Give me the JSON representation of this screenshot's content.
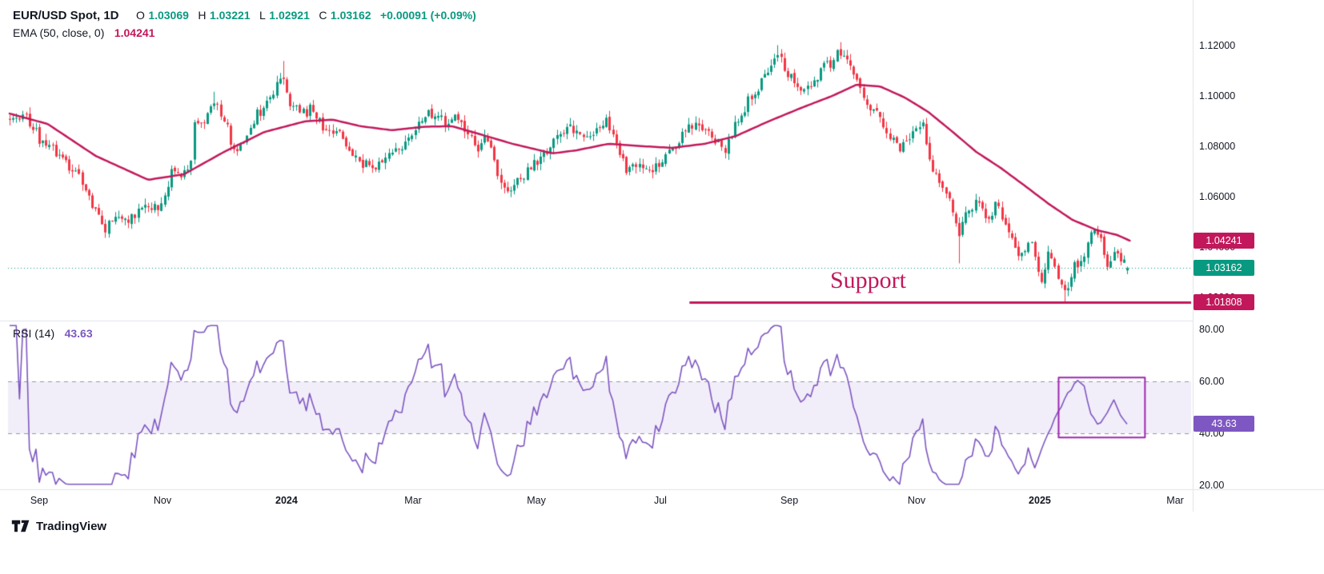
{
  "legend": {
    "title": "EUR/USD Spot, 1D",
    "o_key": "O",
    "o_val": "1.03069",
    "h_key": "H",
    "h_val": "1.03221",
    "l_key": "L",
    "l_val": "1.02921",
    "c_key": "C",
    "c_val": "1.03162",
    "change": "+0.00091 (+0.09%)",
    "ema_label": "EMA (50, close, 0)",
    "ema_value": "1.04241",
    "rsi_label": "RSI (14)",
    "rsi_value": "43.63"
  },
  "badges": {
    "ema": "1.04241",
    "price": "1.03162",
    "support": "1.01808",
    "rsi": "43.63"
  },
  "footer": {
    "brand": "TradingView"
  },
  "chart_data": {
    "type": "candlestick",
    "title": "EUR/USD Spot, 1D",
    "x_ticks": [
      {
        "label": "Sep",
        "f": 0.0264
      },
      {
        "label": "Nov",
        "f": 0.1306
      },
      {
        "label": "2024",
        "f": 0.2354,
        "bold": true
      },
      {
        "label": "Mar",
        "f": 0.3424
      },
      {
        "label": "May",
        "f": 0.4466
      },
      {
        "label": "Jul",
        "f": 0.5514
      },
      {
        "label": "Sep",
        "f": 0.6604
      },
      {
        "label": "Nov",
        "f": 0.7679
      },
      {
        "label": "2025",
        "f": 0.8721,
        "bold": true
      },
      {
        "label": "Mar",
        "f": 0.9865
      }
    ],
    "price_pane": {
      "ylim": [
        1.0114,
        1.1356
      ],
      "y_ticks": [
        {
          "label": "1.12000",
          "value": 1.12
        },
        {
          "label": "1.10000",
          "value": 1.1
        },
        {
          "label": "1.08000",
          "value": 1.08
        },
        {
          "label": "1.06000",
          "value": 1.06
        },
        {
          "label": "1.04000",
          "value": 1.04
        },
        {
          "label": "1.02000",
          "value": 1.02
        }
      ],
      "num_candles": 340,
      "seed": 11,
      "noise": 0.0018,
      "wick": 0.0026,
      "last_price": 1.03162,
      "last_candle": {
        "o": 1.03069,
        "h": 1.03221,
        "l": 1.02921,
        "c": 1.03162
      },
      "support": {
        "level": 1.01808,
        "start_f": 0.576,
        "label": "Support",
        "label_center_f": 0.727
      },
      "price_anchors": [
        [
          0.0,
          1.0905
        ],
        [
          0.013,
          1.0925
        ],
        [
          0.026,
          1.0845
        ],
        [
          0.047,
          1.076
        ],
        [
          0.063,
          1.068
        ],
        [
          0.0745,
          1.056
        ],
        [
          0.085,
          1.047
        ],
        [
          0.096,
          1.053
        ],
        [
          0.104,
          1.05
        ],
        [
          0.118,
          1.056
        ],
        [
          0.131,
          1.0555
        ],
        [
          0.138,
          1.058
        ],
        [
          0.145,
          1.072
        ],
        [
          0.152,
          1.069
        ],
        [
          0.161,
          1.07
        ],
        [
          0.165,
          1.088
        ],
        [
          0.175,
          1.091
        ],
        [
          0.184,
          1.097
        ],
        [
          0.193,
          1.09
        ],
        [
          0.2,
          1.079
        ],
        [
          0.208,
          1.081
        ],
        [
          0.218,
          1.092
        ],
        [
          0.228,
          1.096
        ],
        [
          0.2385,
          1.104
        ],
        [
          0.2435,
          1.109
        ],
        [
          0.25,
          1.098
        ],
        [
          0.258,
          1.094
        ],
        [
          0.27,
          1.095
        ],
        [
          0.28,
          1.088
        ],
        [
          0.293,
          1.086
        ],
        [
          0.306,
          1.077
        ],
        [
          0.318,
          1.074
        ],
        [
          0.328,
          1.072
        ],
        [
          0.34,
          1.078
        ],
        [
          0.352,
          1.08
        ],
        [
          0.365,
          1.087
        ],
        [
          0.374,
          1.0935
        ],
        [
          0.384,
          1.092
        ],
        [
          0.392,
          1.087
        ],
        [
          0.4,
          1.092
        ],
        [
          0.41,
          1.085
        ],
        [
          0.418,
          1.079
        ],
        [
          0.426,
          1.086
        ],
        [
          0.436,
          1.07
        ],
        [
          0.444,
          1.063
        ],
        [
          0.452,
          1.066
        ],
        [
          0.464,
          1.071
        ],
        [
          0.477,
          1.076
        ],
        [
          0.49,
          1.086
        ],
        [
          0.499,
          1.0875
        ],
        [
          0.51,
          1.085
        ],
        [
          0.521,
          1.082
        ],
        [
          0.532,
          1.0895
        ],
        [
          0.543,
          1.081
        ],
        [
          0.552,
          1.07
        ],
        [
          0.563,
          1.073
        ],
        [
          0.574,
          1.07
        ],
        [
          0.585,
          1.0745
        ],
        [
          0.597,
          1.082
        ],
        [
          0.612,
          1.0895
        ],
        [
          0.625,
          1.085
        ],
        [
          0.64,
          1.079
        ],
        [
          0.652,
          1.091
        ],
        [
          0.668,
          1.101
        ],
        [
          0.68,
          1.113
        ],
        [
          0.687,
          1.117
        ],
        [
          0.697,
          1.108
        ],
        [
          0.707,
          1.104
        ],
        [
          0.716,
          1.102
        ],
        [
          0.729,
          1.112
        ],
        [
          0.742,
          1.118
        ],
        [
          0.752,
          1.113
        ],
        [
          0.765,
          1.099
        ],
        [
          0.779,
          1.0905
        ],
        [
          0.795,
          1.0785
        ],
        [
          0.807,
          1.084
        ],
        [
          0.818,
          1.089
        ],
        [
          0.824,
          1.073
        ],
        [
          0.832,
          1.064
        ],
        [
          0.843,
          1.056
        ],
        [
          0.85,
          1.045
        ],
        [
          0.857,
          1.054
        ],
        [
          0.864,
          1.058
        ],
        [
          0.876,
          1.051
        ],
        [
          0.883,
          1.057
        ],
        [
          0.892,
          1.049
        ],
        [
          0.902,
          1.036
        ],
        [
          0.914,
          1.042
        ],
        [
          0.9225,
          1.026
        ],
        [
          0.93,
          1.039
        ],
        [
          0.938,
          1.027
        ],
        [
          0.944,
          1.022
        ],
        [
          0.951,
          1.03
        ],
        [
          0.958,
          1.033
        ],
        [
          0.97,
          1.049
        ],
        [
          0.977,
          1.043
        ],
        [
          0.982,
          1.03
        ],
        [
          0.987,
          1.039
        ],
        [
          0.994,
          1.033
        ],
        [
          1.0,
          1.0316
        ]
      ],
      "spikes": [
        {
          "f": 0.085,
          "kind": "low",
          "value": 1.0448
        },
        {
          "f": 0.184,
          "kind": "high",
          "value": 1.1017
        },
        {
          "f": 0.2435,
          "kind": "high",
          "value": 1.1139
        },
        {
          "f": 0.687,
          "kind": "high",
          "value": 1.1202
        },
        {
          "f": 0.742,
          "kind": "high",
          "value": 1.1214
        },
        {
          "f": 0.85,
          "kind": "low",
          "value": 1.0335
        },
        {
          "f": 0.944,
          "kind": "low",
          "value": 1.01785
        }
      ],
      "ema_anchors": [
        [
          0.0,
          1.093
        ],
        [
          0.034,
          1.0889
        ],
        [
          0.077,
          1.0762
        ],
        [
          0.124,
          1.0667
        ],
        [
          0.156,
          1.0689
        ],
        [
          0.192,
          1.0778
        ],
        [
          0.228,
          1.0857
        ],
        [
          0.264,
          1.0899
        ],
        [
          0.289,
          1.0906
        ],
        [
          0.314,
          1.088
        ],
        [
          0.342,
          1.0864
        ],
        [
          0.371,
          1.0878
        ],
        [
          0.396,
          1.088
        ],
        [
          0.421,
          1.0848
        ],
        [
          0.45,
          1.081
        ],
        [
          0.486,
          1.0772
        ],
        [
          0.507,
          1.0784
        ],
        [
          0.536,
          1.081
        ],
        [
          0.564,
          1.0801
        ],
        [
          0.593,
          1.0794
        ],
        [
          0.622,
          1.081
        ],
        [
          0.65,
          1.0841
        ],
        [
          0.679,
          1.0899
        ],
        [
          0.708,
          1.0952
        ],
        [
          0.736,
          1.1
        ],
        [
          0.758,
          1.1045
        ],
        [
          0.779,
          1.1038
        ],
        [
          0.801,
          1.0994
        ],
        [
          0.822,
          1.0937
        ],
        [
          0.844,
          1.0857
        ],
        [
          0.865,
          1.0778
        ],
        [
          0.887,
          1.0714
        ],
        [
          0.908,
          1.0645
        ],
        [
          0.93,
          1.0571
        ],
        [
          0.951,
          1.0508
        ],
        [
          0.973,
          1.0467
        ],
        [
          0.991,
          1.0448
        ],
        [
          1.003,
          1.04241
        ]
      ]
    },
    "rsi_pane": {
      "name": "RSI (14)",
      "period": 14,
      "ylim": [
        19.2,
        82.8
      ],
      "y_ticks": [
        {
          "label": "80.00",
          "value": 80
        },
        {
          "label": "60.00",
          "value": 60
        },
        {
          "label": "40.00",
          "value": 40
        },
        {
          "label": "20.00",
          "value": 20
        }
      ],
      "band": [
        40,
        60
      ],
      "last_value": 43.63,
      "end_force_span": 30,
      "end_anchors": [
        [
          0.0,
          30
        ],
        [
          0.05,
          27
        ],
        [
          0.15,
          38
        ],
        [
          0.3,
          50
        ],
        [
          0.38,
          55
        ],
        [
          0.48,
          61
        ],
        [
          0.55,
          58
        ],
        [
          0.62,
          48
        ],
        [
          0.7,
          43
        ],
        [
          0.78,
          47
        ],
        [
          0.86,
          53
        ],
        [
          0.93,
          47
        ],
        [
          1.0,
          43.63
        ]
      ],
      "box": {
        "f0": 0.888,
        "f1": 0.961,
        "top": 61.5,
        "bottom": 38.5
      }
    },
    "colors": {
      "up": "#089981",
      "down": "#f23645",
      "ema": "#c2185b",
      "support": "#c2185b",
      "last_price_line": "#089981",
      "price_badge": "#089981",
      "rsi": "#7e57c2",
      "rsi_box": "#9c27b0",
      "rsi_badge": "#7e57c2",
      "band_fill": "rgba(126,87,194,0.10)",
      "band_line": "#9598a1",
      "text": "#131722",
      "muted": "#6a6d78",
      "separator": "#e0e3eb"
    }
  }
}
